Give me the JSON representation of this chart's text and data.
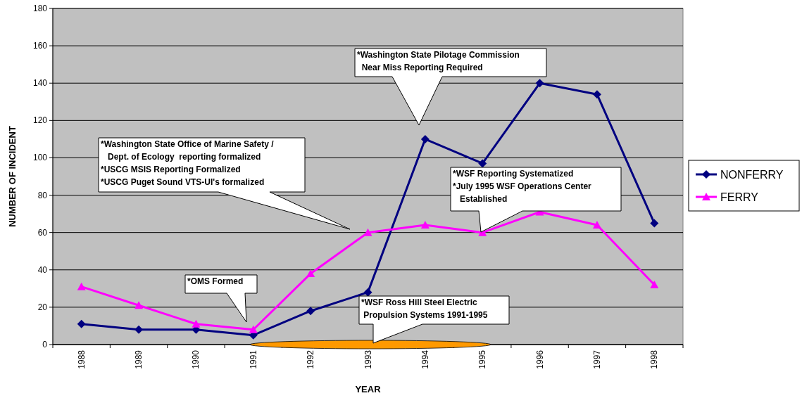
{
  "chart_data": {
    "type": "line",
    "xlabel": "YEAR",
    "ylabel": "NUMBER OF INCIDENT",
    "categories": [
      "1988",
      "1989",
      "1990",
      "1991",
      "1992",
      "1993",
      "1994",
      "1995",
      "1996",
      "1997",
      "1998"
    ],
    "series": [
      {
        "name": "NONFERRY",
        "color": "#000080",
        "marker": "diamond",
        "values": [
          11,
          8,
          8,
          5,
          18,
          28,
          110,
          97,
          140,
          134,
          65
        ]
      },
      {
        "name": "FERRY",
        "color": "#ff00ff",
        "marker": "triangle",
        "values": [
          31,
          21,
          11,
          8,
          38,
          60,
          64,
          60,
          71,
          64,
          32
        ]
      }
    ],
    "ylim": [
      0,
      180
    ],
    "yticks": [
      0,
      20,
      40,
      60,
      80,
      100,
      120,
      140,
      160,
      180
    ],
    "grid": "y",
    "legend": "right",
    "annotations": [
      "*OMS Formed",
      "*Washington State Office of Marine Safety /\n   Dept. of Ecology  reporting formalized\n*USCG MSIS Reporting Formalized\n*USCG Puget Sound VTS-UI's formalized",
      "*Washington State Pilotage Commission\n  Near Miss Reporting Required",
      "*WSF Reporting Systematized\n*July 1995 WSF Operations Center\n   Established",
      "*WSF Ross Hill Steel Electric\n Propulsion Systems 1991-1995"
    ]
  }
}
